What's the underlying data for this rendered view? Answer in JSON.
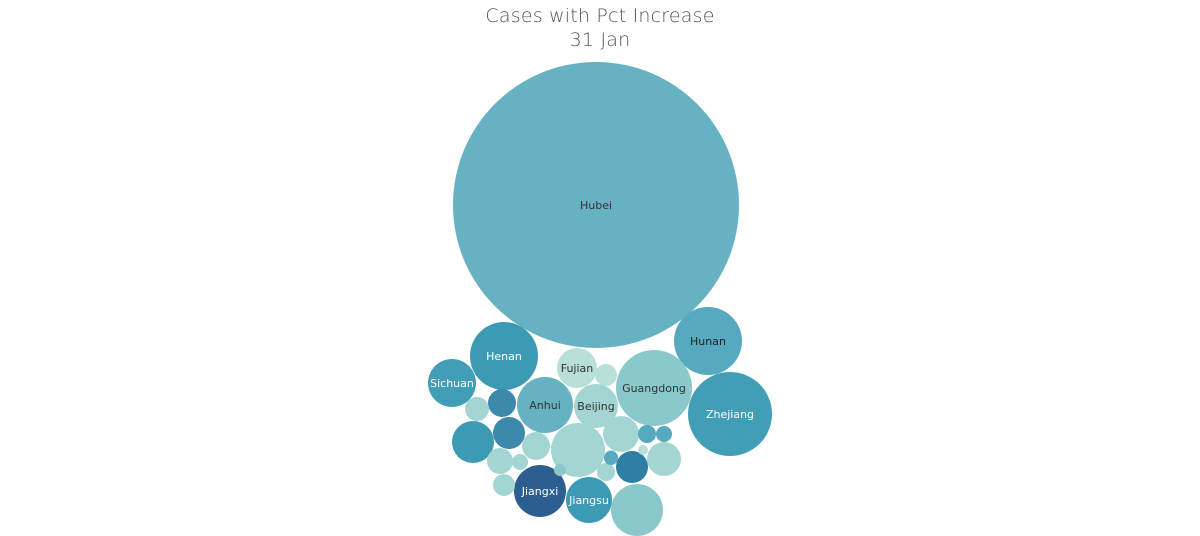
{
  "chart_data": {
    "type": "bubble",
    "title": "Cases with Pct Increase",
    "subtitle": "31 Jan",
    "bubbles": [
      {
        "label": "Hubei",
        "color": "#66b2c3",
        "label_color": "#333333"
      },
      {
        "label": "Hunan",
        "color": "#56a9bf",
        "label_color": "#222222"
      },
      {
        "label": "Zhejiang",
        "color": "#429eb7",
        "label_color": "#ffffff"
      },
      {
        "label": "Henan",
        "color": "#3d9ab5",
        "label_color": "#ffffff"
      },
      {
        "label": "Guangdong",
        "color": "#8ac8cc",
        "label_color": "#333333"
      },
      {
        "label": "Sichuan",
        "color": "#429eb7",
        "label_color": "#ffffff"
      },
      {
        "label": "Anhui",
        "color": "#66b2c3",
        "label_color": "#333333"
      },
      {
        "label": "Fujian",
        "color": "#b8e0d9",
        "label_color": "#333333"
      },
      {
        "label": "Beijing",
        "color": "#a3d5d3",
        "label_color": "#333333"
      },
      {
        "label": "Jiangxi",
        "color": "#2c5f8f",
        "label_color": "#ffffff"
      },
      {
        "label": "Jiangsu",
        "color": "#3d9ab5",
        "label_color": "#ffffff"
      },
      {
        "label": "",
        "color": "#3d9ab5"
      },
      {
        "label": "",
        "color": "#3d89ac"
      },
      {
        "label": "",
        "color": "#3d89ac"
      },
      {
        "label": "",
        "color": "#a3d5d3"
      },
      {
        "label": "",
        "color": "#a3d5d3"
      },
      {
        "label": "",
        "color": "#a3d5d3"
      },
      {
        "label": "",
        "color": "#b8e0d9"
      },
      {
        "label": "",
        "color": "#a3d5d3"
      },
      {
        "label": "",
        "color": "#8ac8cc"
      },
      {
        "label": "",
        "color": "#a3d5d3"
      },
      {
        "label": "",
        "color": "#a3d5d3"
      },
      {
        "label": "",
        "color": "#56a9bf"
      },
      {
        "label": "",
        "color": "#56a9bf"
      },
      {
        "label": "",
        "color": "#a3d5d3"
      },
      {
        "label": "",
        "color": "#2f7ea5"
      },
      {
        "label": "",
        "color": "#a3d5d3"
      },
      {
        "label": "",
        "color": "#a3d5d3"
      },
      {
        "label": "",
        "color": "#b8e0d9"
      },
      {
        "label": "",
        "color": "#56a9bf"
      },
      {
        "label": "",
        "color": "#b8e0d9"
      },
      {
        "label": "",
        "color": "#8ac8cc"
      }
    ]
  }
}
